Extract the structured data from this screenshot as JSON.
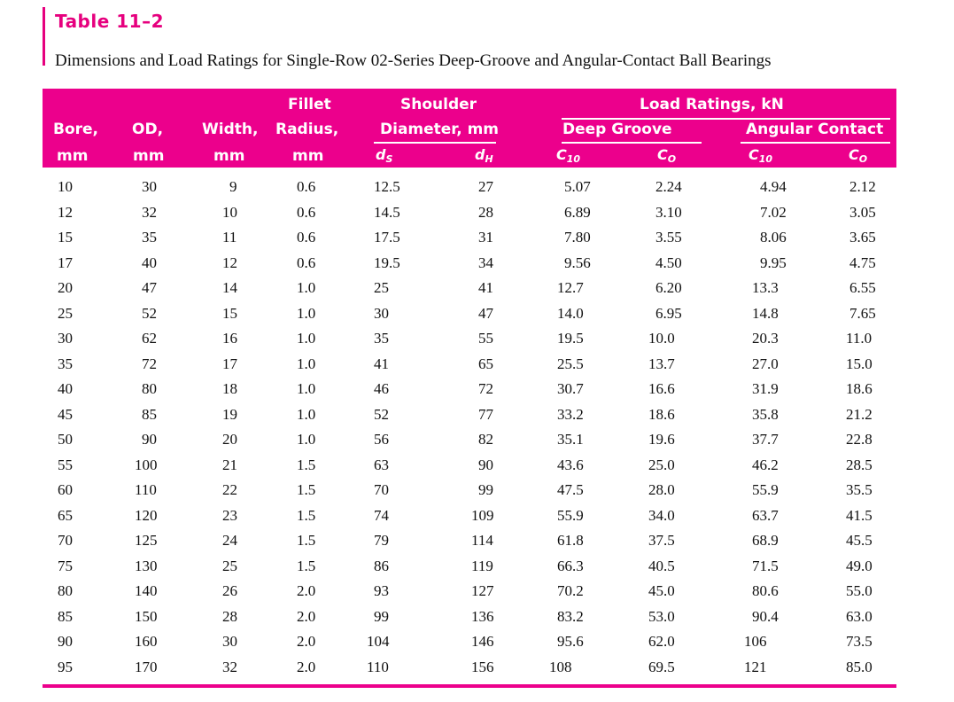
{
  "table_label": "Table 11–2",
  "caption": "Dimensions and Load Ratings for Single-Row 02-Series Deep-Groove and Angular-Contact Ball Bearings",
  "headers": {
    "bore": "Bore,",
    "bore_unit": "mm",
    "od": "OD,",
    "od_unit": "mm",
    "width": "Width,",
    "width_unit": "mm",
    "fillet_1": "Fillet",
    "fillet_2": "Radius,",
    "fillet_unit": "mm",
    "shoulder_1": "Shoulder",
    "shoulder_2": "Diameter, mm",
    "ds": "d",
    "ds_sub": "S",
    "dh": "d",
    "dh_sub": "H",
    "load": "Load Ratings, kN",
    "deep": "Deep Groove",
    "angular": "Angular Contact",
    "c10_a": "C",
    "c10_a_sub": "10",
    "c0_a": "C",
    "c0_a_sub": "O",
    "c10_b": "C",
    "c10_b_sub": "10",
    "c0_b": "C",
    "c0_b_sub": "O"
  },
  "rows": [
    [
      "10",
      "30",
      "9",
      "0.6",
      "12.5",
      "27",
      "5.07",
      "2.24",
      "4.94",
      "2.12"
    ],
    [
      "12",
      "32",
      "10",
      "0.6",
      "14.5",
      "28",
      "6.89",
      "3.10",
      "7.02",
      "3.05"
    ],
    [
      "15",
      "35",
      "11",
      "0.6",
      "17.5",
      "31",
      "7.80",
      "3.55",
      "8.06",
      "3.65"
    ],
    [
      "17",
      "40",
      "12",
      "0.6",
      "19.5",
      "34",
      "9.56",
      "4.50",
      "9.95",
      "4.75"
    ],
    [
      "20",
      "47",
      "14",
      "1.0",
      "25",
      "41",
      "12.7",
      "6.20",
      "13.3",
      "6.55"
    ],
    [
      "25",
      "52",
      "15",
      "1.0",
      "30",
      "47",
      "14.0",
      "6.95",
      "14.8",
      "7.65"
    ],
    [
      "30",
      "62",
      "16",
      "1.0",
      "35",
      "55",
      "19.5",
      "10.0",
      "20.3",
      "11.0"
    ],
    [
      "35",
      "72",
      "17",
      "1.0",
      "41",
      "65",
      "25.5",
      "13.7",
      "27.0",
      "15.0"
    ],
    [
      "40",
      "80",
      "18",
      "1.0",
      "46",
      "72",
      "30.7",
      "16.6",
      "31.9",
      "18.6"
    ],
    [
      "45",
      "85",
      "19",
      "1.0",
      "52",
      "77",
      "33.2",
      "18.6",
      "35.8",
      "21.2"
    ],
    [
      "50",
      "90",
      "20",
      "1.0",
      "56",
      "82",
      "35.1",
      "19.6",
      "37.7",
      "22.8"
    ],
    [
      "55",
      "100",
      "21",
      "1.5",
      "63",
      "90",
      "43.6",
      "25.0",
      "46.2",
      "28.5"
    ],
    [
      "60",
      "110",
      "22",
      "1.5",
      "70",
      "99",
      "47.5",
      "28.0",
      "55.9",
      "35.5"
    ],
    [
      "65",
      "120",
      "23",
      "1.5",
      "74",
      "109",
      "55.9",
      "34.0",
      "63.7",
      "41.5"
    ],
    [
      "70",
      "125",
      "24",
      "1.5",
      "79",
      "114",
      "61.8",
      "37.5",
      "68.9",
      "45.5"
    ],
    [
      "75",
      "130",
      "25",
      "1.5",
      "86",
      "119",
      "66.3",
      "40.5",
      "71.5",
      "49.0"
    ],
    [
      "80",
      "140",
      "26",
      "2.0",
      "93",
      "127",
      "70.2",
      "45.0",
      "80.6",
      "55.0"
    ],
    [
      "85",
      "150",
      "28",
      "2.0",
      "99",
      "136",
      "83.2",
      "53.0",
      "90.4",
      "63.0"
    ],
    [
      "90",
      "160",
      "30",
      "2.0",
      "104",
      "146",
      "95.6",
      "62.0",
      "106",
      "73.5"
    ],
    [
      "95",
      "170",
      "32",
      "2.0",
      "110",
      "156",
      "108",
      "69.5",
      "121",
      "85.0"
    ]
  ]
}
